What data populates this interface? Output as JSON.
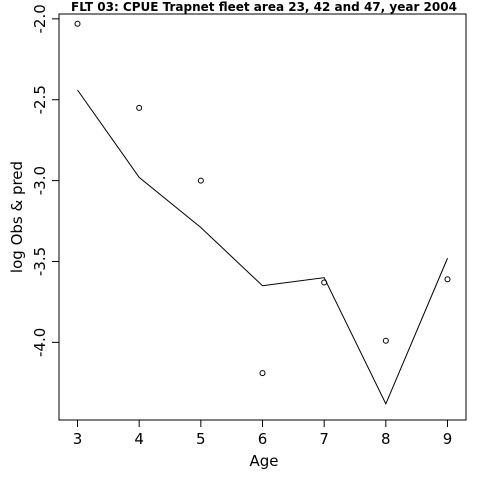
{
  "chart_data": {
    "type": "line",
    "title": "FLT 03: CPUE Trapnet fleet area 23, 42 and 47, year 2004",
    "xlabel": "Age",
    "ylabel": "log Obs & pred",
    "x": [
      3,
      4,
      5,
      6,
      7,
      8,
      9
    ],
    "series": [
      {
        "kind": "points",
        "values": [
          -2.03,
          -2.55,
          -3.0,
          -4.19,
          -3.63,
          -3.99,
          -3.61
        ]
      },
      {
        "kind": "line",
        "values": [
          -2.44,
          -2.98,
          -3.29,
          -3.65,
          -3.6,
          -4.38,
          -3.48
        ]
      }
    ],
    "xlim": [
      2.7,
      9.3
    ],
    "ylim": [
      -4.48,
      -1.97
    ],
    "xticks": [
      "3",
      "4",
      "5",
      "6",
      "7",
      "8",
      "9"
    ],
    "yticks": [
      "-2.0",
      "-2.5",
      "-3.0",
      "-3.5",
      "-4.0"
    ],
    "grid": false,
    "legend": "none"
  }
}
